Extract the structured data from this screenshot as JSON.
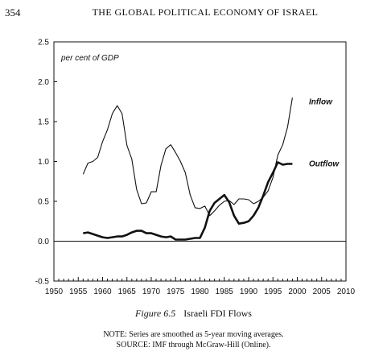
{
  "header": {
    "page_number": "354",
    "running_head": "THE GLOBAL POLITICAL ECONOMY OF ISRAEL"
  },
  "figure": {
    "number": "Figure 6.5",
    "title": "Israeli FDI Flows",
    "note": "NOTE: Series are smoothed as 5-year moving averages.",
    "source": "SOURCE: IMF through McGraw-Hill (Online)."
  },
  "chart_data": {
    "type": "line",
    "title": "",
    "ylabel": "per cent of GDP",
    "xlabel": "",
    "xlim": [
      1950,
      2010
    ],
    "ylim": [
      -0.5,
      2.5
    ],
    "x_ticks": [
      1950,
      1955,
      1960,
      1965,
      1970,
      1975,
      1980,
      1985,
      1990,
      1995,
      2000,
      2005,
      2010
    ],
    "y_ticks": [
      "-0.5",
      "0.0",
      "0.5",
      "1.0",
      "1.5",
      "2.0",
      "2.5"
    ],
    "grid": false,
    "series": [
      {
        "name": "Inflow",
        "style": "thin",
        "x": [
          1956,
          1957,
          1958,
          1959,
          1960,
          1961,
          1962,
          1963,
          1964,
          1965,
          1966,
          1967,
          1968,
          1969,
          1970,
          1971,
          1972,
          1973,
          1974,
          1975,
          1976,
          1977,
          1978,
          1979,
          1980,
          1981,
          1982,
          1983,
          1984,
          1985,
          1986,
          1987,
          1988,
          1989,
          1990,
          1991,
          1992,
          1993,
          1994,
          1995,
          1996,
          1997,
          1998,
          1999
        ],
        "values": [
          0.84,
          0.98,
          1.0,
          1.05,
          1.25,
          1.4,
          1.6,
          1.7,
          1.6,
          1.2,
          1.03,
          0.65,
          0.47,
          0.48,
          0.62,
          0.62,
          0.95,
          1.16,
          1.21,
          1.11,
          1.0,
          0.86,
          0.58,
          0.42,
          0.41,
          0.44,
          0.32,
          0.38,
          0.45,
          0.5,
          0.51,
          0.46,
          0.53,
          0.53,
          0.52,
          0.47,
          0.5,
          0.55,
          0.63,
          0.8,
          1.08,
          1.21,
          1.43,
          1.8
        ]
      },
      {
        "name": "Outflow",
        "style": "thick",
        "x": [
          1956,
          1957,
          1958,
          1959,
          1960,
          1961,
          1962,
          1963,
          1964,
          1965,
          1966,
          1967,
          1968,
          1969,
          1970,
          1971,
          1972,
          1973,
          1974,
          1975,
          1976,
          1977,
          1978,
          1979,
          1980,
          1981,
          1982,
          1983,
          1984,
          1985,
          1986,
          1987,
          1988,
          1989,
          1990,
          1991,
          1992,
          1993,
          1994,
          1995,
          1996,
          1997,
          1998,
          1999
        ],
        "values": [
          0.1,
          0.11,
          0.09,
          0.07,
          0.05,
          0.04,
          0.05,
          0.06,
          0.06,
          0.08,
          0.11,
          0.13,
          0.13,
          0.1,
          0.1,
          0.08,
          0.06,
          0.05,
          0.06,
          0.02,
          0.02,
          0.02,
          0.03,
          0.04,
          0.04,
          0.17,
          0.38,
          0.48,
          0.53,
          0.58,
          0.49,
          0.32,
          0.22,
          0.23,
          0.25,
          0.32,
          0.42,
          0.57,
          0.74,
          0.86,
          0.99,
          0.96,
          0.97,
          0.97
        ]
      }
    ],
    "legend": "series labels placed at right end of lines"
  }
}
